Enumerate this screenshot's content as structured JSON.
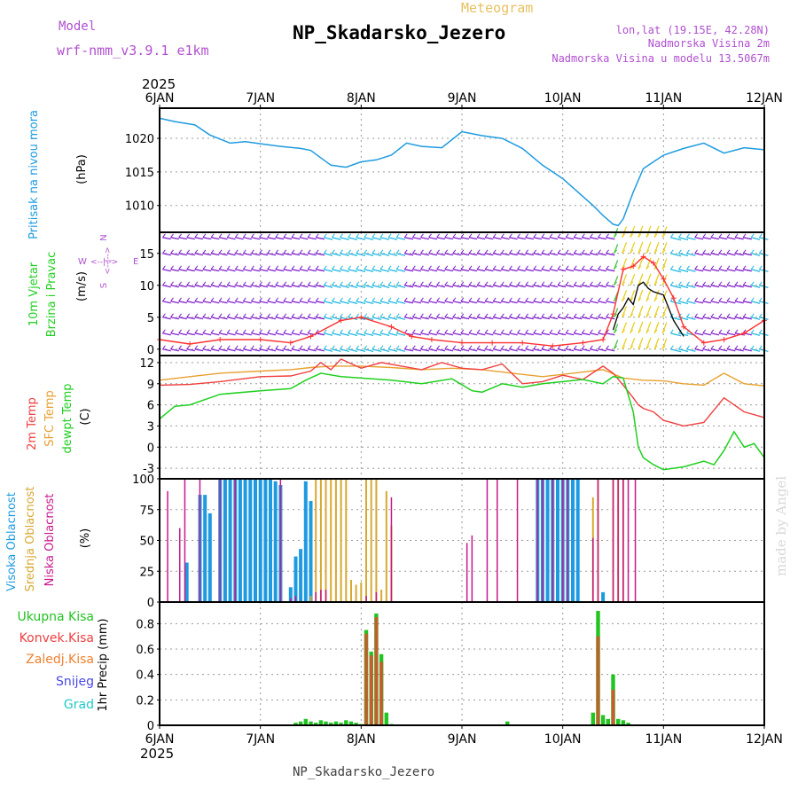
{
  "header": {
    "model_label": "Model",
    "model_name": "wrf-nmm_v3.9.1 e1km",
    "meteogram_label": "Meteogram",
    "station": "NP_Skadarsko_Jezero",
    "lonlat": "lon,lat (19.15E, 42.28N)",
    "altitude": "Nadmorska Visina 2m",
    "model_altitude": "Nadmorska Visina u modelu 13.5067m",
    "footer": "NP_Skadarsko_Jezero",
    "made_by": "made by Angel",
    "year_top": "2025",
    "year_bottom": "2025"
  },
  "colors": {
    "pressure": "#1e9be0",
    "wind_speed": "#ff3030",
    "temp_2m": "#f04040",
    "temp_sfc": "#e8a030",
    "dewpt": "#20d020",
    "cloud_high": "#1e9be0",
    "cloud_mid": "#d8a830",
    "cloud_low": "#c8188c",
    "precip_total": "#22c422",
    "precip_conv": "#f04040",
    "precip_frozen": "#f08030",
    "precip_snow": "#4848e8",
    "precip_hail": "#20c8c8",
    "labels_purple": "#b050d0"
  },
  "chart_data": [
    {
      "type": "line",
      "panel": "pressure",
      "ylabel": "Pritisak na nivou mora",
      "unit": "(hPa)",
      "ylim": [
        1006,
        1024.5
      ],
      "yticks": [
        1010,
        1015,
        1020
      ],
      "x_dates": [
        "6JAN",
        "7JAN",
        "8JAN",
        "9JAN",
        "10JAN",
        "11JAN",
        "12JAN"
      ],
      "x_days": [
        0,
        0.15,
        0.35,
        0.5,
        0.7,
        0.85,
        1.0,
        1.2,
        1.4,
        1.5,
        1.7,
        1.85,
        2.0,
        2.15,
        2.3,
        2.45,
        2.6,
        2.8,
        3.0,
        3.2,
        3.4,
        3.6,
        3.8,
        4.0,
        4.15,
        4.3,
        4.4,
        4.5,
        4.55,
        4.6,
        4.7,
        4.8,
        5.0,
        5.2,
        5.4,
        5.6,
        5.8,
        6.0
      ],
      "values": [
        1023,
        1022.5,
        1022,
        1020.5,
        1019.3,
        1019.5,
        1019.2,
        1018.8,
        1018.5,
        1018.2,
        1016,
        1015.7,
        1016.5,
        1016.8,
        1017.5,
        1019.3,
        1018.8,
        1018.6,
        1021,
        1020.4,
        1020,
        1018.5,
        1016,
        1014,
        1012,
        1010,
        1008.5,
        1007.2,
        1007,
        1008,
        1012,
        1015.5,
        1017.5,
        1018.5,
        1019.3,
        1017.8,
        1018.6,
        1018.3
      ]
    },
    {
      "type": "line",
      "panel": "wind",
      "ylabel": "10m Vjetar Brzina i Pravac",
      "unit": "(m/s)",
      "compass": [
        "N",
        "E",
        "S",
        "W"
      ],
      "ylim": [
        -1,
        18.3
      ],
      "yticks": [
        0,
        5,
        10,
        15
      ],
      "series": [
        {
          "key": "speed",
          "x": [
            0,
            0.3,
            0.6,
            1.0,
            1.3,
            1.5,
            1.8,
            2.0,
            2.3,
            2.5,
            2.7,
            3.0,
            3.3,
            3.6,
            3.9,
            4.2,
            4.4,
            4.5,
            4.6,
            4.7,
            4.8,
            4.9,
            5.0,
            5.1,
            5.2,
            5.4,
            5.6,
            5.8,
            6.0
          ],
          "values": [
            1.5,
            0.8,
            1.5,
            1.5,
            1.0,
            2.0,
            4.5,
            5.0,
            3.5,
            2.0,
            1.5,
            1.0,
            1.0,
            1.0,
            0.5,
            1.0,
            1.5,
            5.5,
            12.5,
            13.0,
            14.5,
            13.5,
            11.0,
            8.0,
            3.5,
            1.0,
            1.5,
            2.5,
            4.5
          ]
        },
        {
          "key": "gust_black",
          "x": [
            4.5,
            4.55,
            4.6,
            4.65,
            4.7,
            4.75,
            4.8,
            4.85,
            4.9,
            5.0,
            5.1,
            5.2
          ],
          "values": [
            3.0,
            5.5,
            6.5,
            8.0,
            7.0,
            10.0,
            10.5,
            9.5,
            9.0,
            8.5,
            4.5,
            2.0
          ]
        }
      ],
      "barb_rows": [
        0,
        2.5,
        5,
        7.5,
        10,
        12.5,
        15,
        17.5
      ]
    },
    {
      "type": "line",
      "panel": "temperature",
      "series_labels": [
        "2m Temp",
        "SFC Temp",
        "dewpt Temp"
      ],
      "unit": "(C)",
      "ylim": [
        -4.5,
        13
      ],
      "yticks": [
        -3,
        0,
        3,
        6,
        9,
        12
      ],
      "series": [
        {
          "key": "t2m",
          "x": [
            0,
            0.3,
            0.6,
            1.0,
            1.3,
            1.5,
            1.6,
            1.7,
            1.8,
            2.0,
            2.2,
            2.4,
            2.6,
            2.8,
            3.0,
            3.2,
            3.4,
            3.6,
            3.8,
            4.0,
            4.2,
            4.4,
            4.5,
            4.6,
            4.7,
            4.75,
            4.8,
            4.9,
            5.0,
            5.2,
            5.4,
            5.6,
            5.8,
            6.0
          ],
          "values": [
            8.8,
            8.9,
            9.3,
            10.0,
            10.1,
            10.8,
            12.0,
            11.0,
            12.5,
            11.2,
            12.0,
            11.5,
            11.0,
            12.0,
            11.2,
            11.0,
            11.8,
            9.0,
            9.3,
            10.2,
            9.6,
            11.5,
            10.5,
            8.8,
            7.0,
            6.0,
            5.5,
            5.0,
            3.8,
            3.0,
            3.5,
            7.0,
            5.0,
            4.2
          ]
        },
        {
          "key": "tsfc",
          "x": [
            0,
            0.3,
            0.6,
            1.0,
            1.3,
            1.5,
            1.7,
            2.0,
            2.3,
            2.6,
            2.9,
            3.2,
            3.5,
            3.8,
            4.1,
            4.4,
            4.6,
            4.8,
            5.0,
            5.2,
            5.4,
            5.6,
            5.8,
            6.0
          ],
          "values": [
            9.5,
            10.0,
            10.5,
            10.8,
            11.0,
            11.3,
            11.5,
            11.5,
            11.3,
            11.0,
            11.2,
            11.0,
            10.5,
            10.0,
            10.5,
            11.0,
            9.8,
            9.5,
            9.4,
            9.0,
            8.8,
            10.5,
            9.0,
            8.7
          ]
        },
        {
          "key": "dew",
          "x": [
            0,
            0.15,
            0.3,
            0.6,
            1.0,
            1.3,
            1.45,
            1.6,
            1.8,
            2.0,
            2.3,
            2.6,
            2.9,
            3.1,
            3.2,
            3.4,
            3.6,
            3.8,
            4.0,
            4.2,
            4.4,
            4.5,
            4.6,
            4.7,
            4.75,
            4.8,
            4.9,
            5.0,
            5.2,
            5.4,
            5.5,
            5.6,
            5.7,
            5.8,
            5.9,
            6.0
          ],
          "values": [
            4.0,
            5.8,
            6.0,
            7.5,
            8.0,
            8.3,
            9.5,
            10.5,
            10.0,
            9.8,
            9.5,
            9.0,
            9.7,
            8.0,
            7.8,
            9.0,
            8.5,
            9.0,
            9.3,
            9.6,
            9.0,
            10.0,
            9.8,
            5.0,
            0.0,
            -1.5,
            -2.5,
            -3.2,
            -2.8,
            -2.0,
            -2.5,
            -0.5,
            2.2,
            0.0,
            0.5,
            -1.5
          ]
        }
      ]
    },
    {
      "type": "bar",
      "panel": "clouds",
      "series_labels": [
        "Visoka Oblacnost",
        "Srednja Oblacnost",
        "Niska Oblacnost"
      ],
      "unit": "(%)",
      "ylim": [
        0,
        100
      ],
      "yticks": [
        0,
        25,
        50,
        75,
        100
      ],
      "series": [
        {
          "key": "high",
          "x": [
            0.27,
            0.4,
            0.45,
            0.5,
            0.6,
            0.65,
            0.7,
            0.75,
            0.8,
            0.85,
            0.9,
            0.95,
            1.0,
            1.05,
            1.1,
            1.15,
            1.2,
            1.3,
            1.35,
            1.4,
            1.45,
            1.5,
            3.75,
            3.8,
            3.85,
            3.9,
            3.95,
            4.0,
            4.05,
            4.1,
            4.15,
            4.4
          ],
          "values": [
            32,
            87,
            87,
            72,
            100,
            100,
            100,
            100,
            100,
            100,
            100,
            100,
            100,
            100,
            100,
            98,
            95,
            12,
            37,
            43,
            98,
            82,
            100,
            100,
            100,
            100,
            100,
            100,
            100,
            100,
            100,
            8
          ]
        },
        {
          "key": "mid",
          "x": [
            1.5,
            1.55,
            1.6,
            1.65,
            1.7,
            1.75,
            1.8,
            1.85,
            1.9,
            1.95,
            2.0,
            2.05,
            2.1,
            2.15,
            2.2,
            2.25,
            2.3,
            4.3,
            4.35,
            4.5,
            4.55,
            4.6
          ],
          "values": [
            5,
            100,
            100,
            100,
            100,
            100,
            100,
            100,
            18,
            14,
            16,
            100,
            100,
            100,
            10,
            90,
            62,
            85,
            100,
            100,
            100,
            100
          ]
        },
        {
          "key": "low",
          "x": [
            0.08,
            0.2,
            0.25,
            0.4,
            0.6,
            0.75,
            1.2,
            1.3,
            1.35,
            1.55,
            1.6,
            1.65,
            2.05,
            2.15,
            2.3,
            3.05,
            3.1,
            3.25,
            3.35,
            3.55,
            3.75,
            3.8,
            3.9,
            4.0,
            4.05,
            4.3,
            4.35,
            4.5,
            4.55,
            4.6,
            4.65,
            4.72
          ],
          "values": [
            90,
            60,
            100,
            100,
            100,
            100,
            100,
            3,
            5,
            8,
            10,
            10,
            5,
            8,
            85,
            48,
            54,
            100,
            100,
            100,
            100,
            100,
            100,
            100,
            100,
            52,
            100,
            100,
            100,
            100,
            100,
            100
          ]
        }
      ]
    },
    {
      "type": "bar",
      "panel": "precip",
      "ylabel": "1hr Precip",
      "unit": "(mm)",
      "series_labels": [
        "Ukupna Kisa",
        "Konvek.Kisa",
        "Zaledj.Kisa",
        "Snijeg",
        "Grad"
      ],
      "ylim": [
        0,
        0.97
      ],
      "yticks": [
        0,
        0.2,
        0.4,
        0.6,
        0.8
      ],
      "total": {
        "x": [
          1.35,
          1.4,
          1.45,
          1.5,
          1.55,
          1.6,
          1.65,
          1.7,
          1.75,
          1.8,
          1.85,
          1.9,
          1.95,
          2.0,
          2.05,
          2.1,
          2.15,
          2.2,
          2.25,
          2.3,
          3.45,
          4.3,
          4.35,
          4.4,
          4.45,
          4.5,
          4.55,
          4.6,
          4.65
        ],
        "values": [
          0.02,
          0.03,
          0.05,
          0.03,
          0.02,
          0.04,
          0.03,
          0.02,
          0.03,
          0.02,
          0.04,
          0.03,
          0.02,
          0.01,
          0.75,
          0.58,
          0.88,
          0.56,
          0.1,
          0.01,
          0.03,
          0.1,
          0.9,
          0.08,
          0.05,
          0.4,
          0.05,
          0.04,
          0.02
        ]
      },
      "convective": {
        "x": [
          2.05,
          2.1,
          2.15,
          2.2,
          4.35,
          4.5
        ],
        "values": [
          0.72,
          0.55,
          0.85,
          0.5,
          0.7,
          0.28
        ]
      }
    }
  ]
}
